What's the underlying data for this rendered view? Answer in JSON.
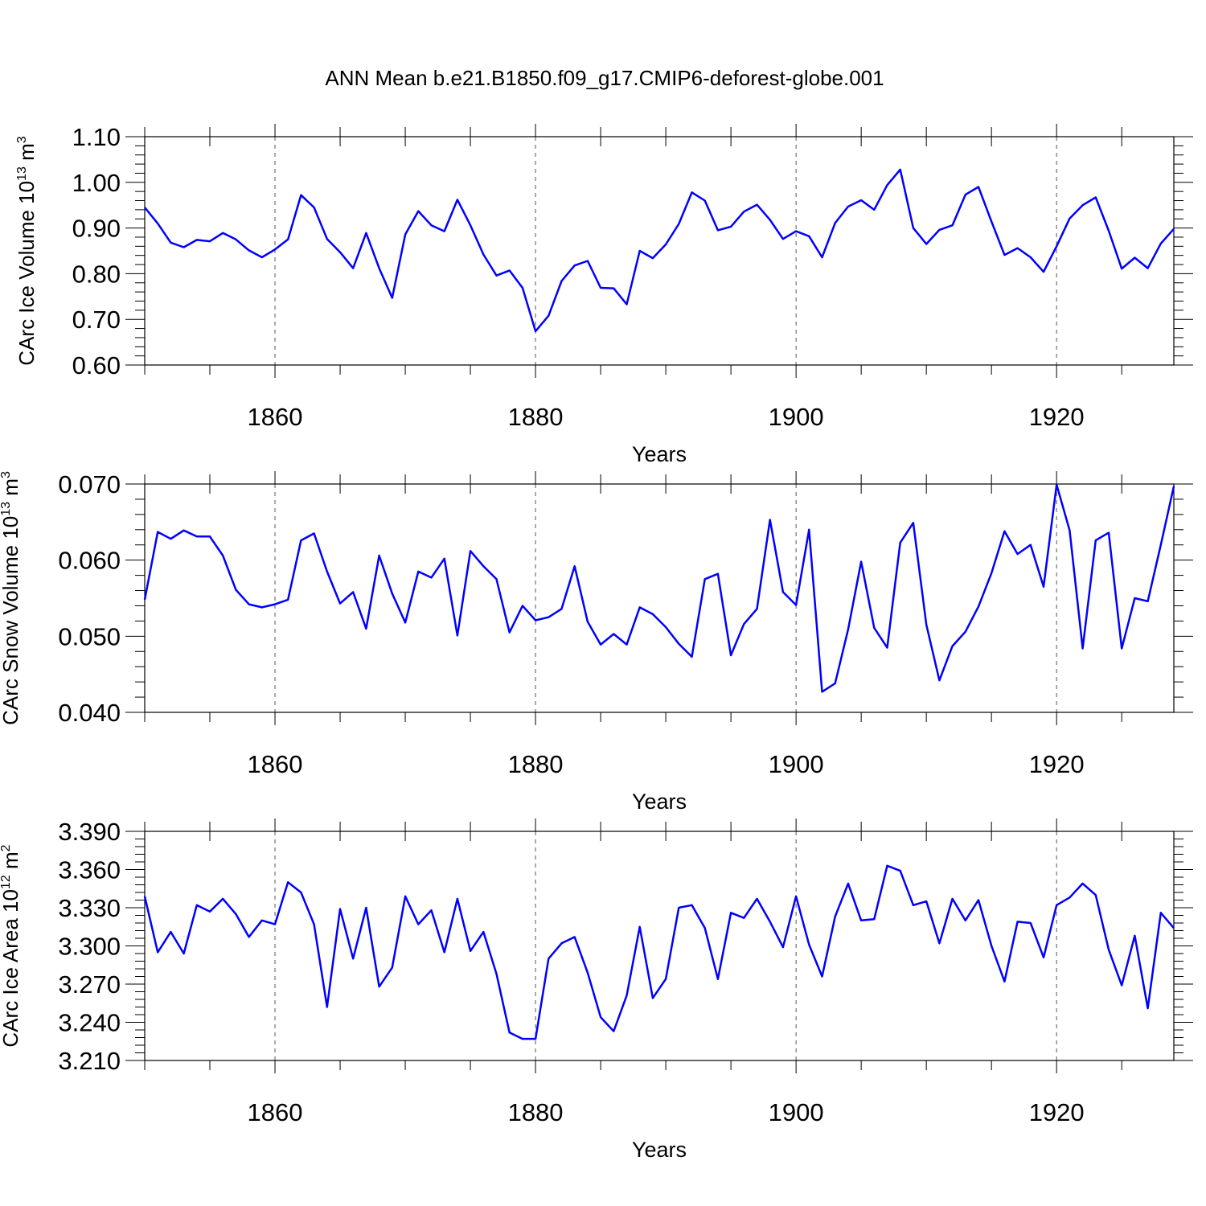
{
  "title": "ANN Mean b.e21.B1850.f09_g17.CMIP6-deforest-globe.001",
  "chart_data": [
    {
      "type": "line",
      "ylabel_main": "CArc Ice Volume 10",
      "ylabel_sup": "13",
      "ylabel_unit": " m",
      "ylabel_unit_sup": "3",
      "xlabel": "Years",
      "xlim": [
        1850,
        1929
      ],
      "ylim": [
        0.6,
        1.1
      ],
      "yticks": [
        "0.60",
        "0.70",
        "0.80",
        "0.90",
        "1.00",
        "1.10"
      ],
      "xticks": [
        "1860",
        "1880",
        "1900",
        "1920"
      ],
      "color": "#0000ff",
      "x_start": 1850,
      "values": [
        0.945,
        0.91,
        0.868,
        0.858,
        0.874,
        0.871,
        0.889,
        0.875,
        0.851,
        0.836,
        0.853,
        0.875,
        0.972,
        0.945,
        0.876,
        0.847,
        0.812,
        0.889,
        0.812,
        0.747,
        0.886,
        0.937,
        0.906,
        0.893,
        0.962,
        0.906,
        0.842,
        0.796,
        0.807,
        0.769,
        0.674,
        0.708,
        0.784,
        0.818,
        0.828,
        0.769,
        0.768,
        0.733,
        0.85,
        0.834,
        0.864,
        0.909,
        0.978,
        0.96,
        0.895,
        0.903,
        0.936,
        0.951,
        0.918,
        0.876,
        0.893,
        0.882,
        0.836,
        0.911,
        0.947,
        0.961,
        0.94,
        0.994,
        1.028,
        0.9,
        0.865,
        0.896,
        0.906,
        0.973,
        0.99,
        0.914,
        0.841,
        0.856,
        0.836,
        0.804,
        0.86,
        0.921,
        0.95,
        0.967,
        0.894,
        0.811,
        0.835,
        0.812,
        0.866,
        0.898
      ]
    },
    {
      "type": "line",
      "ylabel_main": "CArc Snow Volume 10",
      "ylabel_sup": "13",
      "ylabel_unit": " m",
      "ylabel_unit_sup": "3",
      "xlabel": "Years",
      "xlim": [
        1850,
        1929
      ],
      "ylim": [
        0.04,
        0.07
      ],
      "yticks": [
        "0.040",
        "0.050",
        "0.060",
        "0.070"
      ],
      "xticks": [
        "1860",
        "1880",
        "1900",
        "1920"
      ],
      "color": "#0000ff",
      "x_start": 1850,
      "values": [
        0.0548,
        0.0637,
        0.0628,
        0.0639,
        0.0631,
        0.0631,
        0.0606,
        0.0561,
        0.0542,
        0.0538,
        0.0542,
        0.0548,
        0.0626,
        0.0635,
        0.0585,
        0.0543,
        0.0558,
        0.051,
        0.0606,
        0.0556,
        0.0518,
        0.0585,
        0.0577,
        0.0602,
        0.0501,
        0.0612,
        0.0592,
        0.0575,
        0.0505,
        0.054,
        0.0521,
        0.0525,
        0.0536,
        0.0592,
        0.0519,
        0.0489,
        0.0503,
        0.0489,
        0.0538,
        0.0529,
        0.0512,
        0.049,
        0.0473,
        0.0575,
        0.0582,
        0.0475,
        0.0516,
        0.0536,
        0.0653,
        0.0558,
        0.0541,
        0.064,
        0.0427,
        0.0438,
        0.0509,
        0.0598,
        0.0511,
        0.0485,
        0.0623,
        0.0649,
        0.0515,
        0.0442,
        0.0487,
        0.0506,
        0.0539,
        0.0583,
        0.0638,
        0.0608,
        0.062,
        0.0565,
        0.0699,
        0.0639,
        0.0484,
        0.0626,
        0.0636,
        0.0484,
        0.055,
        0.0546,
        0.062,
        0.0697
      ]
    },
    {
      "type": "line",
      "ylabel_main": "CArc Ice Area 10",
      "ylabel_sup": "12",
      "ylabel_unit": " m",
      "ylabel_unit_sup": "2",
      "xlabel": "Years",
      "xlim": [
        1850,
        1929
      ],
      "ylim": [
        3.21,
        3.39
      ],
      "yticks": [
        "3.210",
        "3.240",
        "3.270",
        "3.300",
        "3.330",
        "3.360",
        "3.390"
      ],
      "xticks": [
        "1860",
        "1880",
        "1900",
        "1920"
      ],
      "color": "#0000ff",
      "x_start": 1850,
      "values": [
        3.339,
        3.295,
        3.311,
        3.294,
        3.332,
        3.327,
        3.337,
        3.325,
        3.307,
        3.32,
        3.317,
        3.35,
        3.342,
        3.317,
        3.252,
        3.329,
        3.29,
        3.33,
        3.268,
        3.283,
        3.339,
        3.317,
        3.328,
        3.295,
        3.337,
        3.296,
        3.311,
        3.278,
        3.232,
        3.227,
        3.227,
        3.29,
        3.302,
        3.307,
        3.279,
        3.244,
        3.233,
        3.261,
        3.315,
        3.259,
        3.274,
        3.33,
        3.332,
        3.314,
        3.274,
        3.326,
        3.322,
        3.337,
        3.319,
        3.299,
        3.339,
        3.301,
        3.276,
        3.323,
        3.349,
        3.32,
        3.321,
        3.363,
        3.359,
        3.332,
        3.335,
        3.302,
        3.337,
        3.32,
        3.336,
        3.3,
        3.272,
        3.319,
        3.318,
        3.291,
        3.332,
        3.338,
        3.349,
        3.34,
        3.297,
        3.269,
        3.308,
        3.251,
        3.326,
        3.314
      ]
    }
  ]
}
